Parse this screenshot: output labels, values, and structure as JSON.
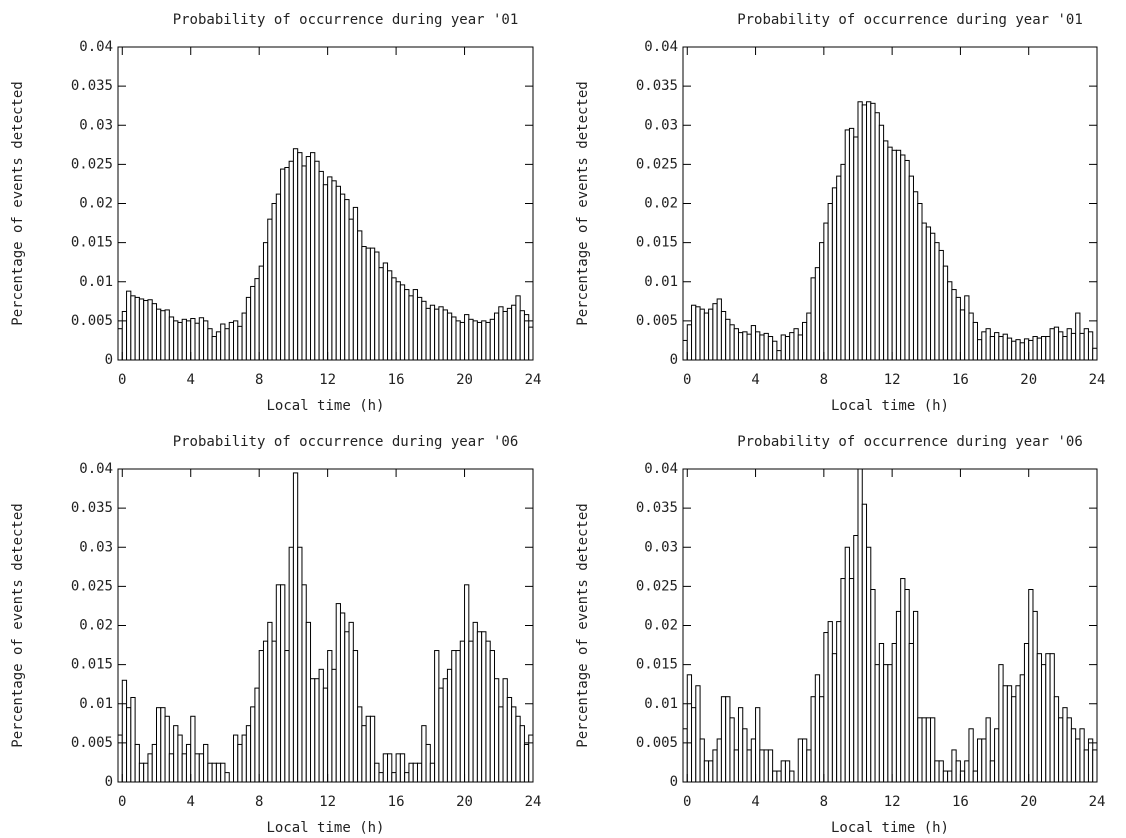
{
  "chart_data": [
    {
      "type": "histogram",
      "title": "Probability of occurrence during year '01",
      "xlabel": "Local time (h)",
      "ylabel": "Percentage of events detected",
      "color": "#ffffff",
      "bins": [
        -0.25,
        0,
        0.25,
        0.5,
        0.75,
        1,
        1.25,
        1.5,
        1.75,
        2,
        2.25,
        2.5,
        2.75,
        3,
        3.25,
        3.5,
        3.75,
        4,
        4.25,
        4.5,
        4.75,
        5,
        5.25,
        5.5,
        5.75,
        6,
        6.25,
        6.5,
        6.75,
        7,
        7.25,
        7.5,
        7.75,
        8,
        8.25,
        8.5,
        8.75,
        9,
        9.25,
        9.5,
        9.75,
        10,
        10.25,
        10.5,
        10.75,
        11,
        11.25,
        11.5,
        11.75,
        12,
        12.25,
        12.5,
        12.75,
        13,
        13.25,
        13.5,
        13.75,
        14,
        14.25,
        14.5,
        14.75,
        15,
        15.25,
        15.5,
        15.75,
        16,
        16.25,
        16.5,
        16.75,
        17,
        17.25,
        17.5,
        17.75,
        18,
        18.25,
        18.5,
        18.75,
        19,
        19.25,
        19.5,
        19.75,
        20,
        20.25,
        20.5,
        20.75,
        21,
        21.25,
        21.5,
        21.75,
        22,
        22.25,
        22.5,
        22.75,
        23,
        23.25,
        23.5,
        23.75,
        24
      ],
      "values": [
        0.004,
        0.0062,
        0.0088,
        0.0082,
        0.008,
        0.0078,
        0.0076,
        0.0077,
        0.0072,
        0.0065,
        0.0063,
        0.0064,
        0.0055,
        0.005,
        0.0048,
        0.0052,
        0.005,
        0.0053,
        0.0047,
        0.0054,
        0.005,
        0.004,
        0.003,
        0.0036,
        0.0046,
        0.004,
        0.0048,
        0.005,
        0.0043,
        0.006,
        0.008,
        0.0094,
        0.0104,
        0.012,
        0.015,
        0.018,
        0.02,
        0.0212,
        0.0244,
        0.0246,
        0.0254,
        0.027,
        0.0265,
        0.0248,
        0.026,
        0.0265,
        0.0254,
        0.0241,
        0.0224,
        0.0234,
        0.0229,
        0.0222,
        0.0212,
        0.0205,
        0.018,
        0.0195,
        0.0165,
        0.0145,
        0.0143,
        0.0143,
        0.0138,
        0.0118,
        0.0124,
        0.0114,
        0.0105,
        0.01,
        0.0096,
        0.009,
        0.0082,
        0.009,
        0.008,
        0.0075,
        0.0066,
        0.007,
        0.0065,
        0.0068,
        0.0064,
        0.006,
        0.0055,
        0.005,
        0.0048,
        0.0058,
        0.0052,
        0.005,
        0.0048,
        0.005,
        0.0048,
        0.0052,
        0.006,
        0.0068,
        0.0062,
        0.0066,
        0.007,
        0.0082,
        0.0063,
        0.0058,
        0.0042
      ],
      "xlim": [
        -0.25,
        24
      ],
      "ylim": [
        0,
        0.04
      ],
      "xticks": [
        0,
        4,
        8,
        12,
        16,
        20,
        24
      ],
      "yticks": [
        0,
        0.005,
        0.01,
        0.015,
        0.02,
        0.025,
        0.03,
        0.035,
        0.04
      ]
    },
    {
      "type": "histogram",
      "title": "Probability of occurrence during year '01",
      "xlabel": "Local time (h)",
      "ylabel": "Percentage of events detected",
      "color": "#ffffff",
      "bins": [
        -0.25,
        0,
        0.25,
        0.5,
        0.75,
        1,
        1.25,
        1.5,
        1.75,
        2,
        2.25,
        2.5,
        2.75,
        3,
        3.25,
        3.5,
        3.75,
        4,
        4.25,
        4.5,
        4.75,
        5,
        5.25,
        5.5,
        5.75,
        6,
        6.25,
        6.5,
        6.75,
        7,
        7.25,
        7.5,
        7.75,
        8,
        8.25,
        8.5,
        8.75,
        9,
        9.25,
        9.5,
        9.75,
        10,
        10.25,
        10.5,
        10.75,
        11,
        11.25,
        11.5,
        11.75,
        12,
        12.25,
        12.5,
        12.75,
        13,
        13.25,
        13.5,
        13.75,
        14,
        14.25,
        14.5,
        14.75,
        15,
        15.25,
        15.5,
        15.75,
        16,
        16.25,
        16.5,
        16.75,
        17,
        17.25,
        17.5,
        17.75,
        18,
        18.25,
        18.5,
        18.75,
        19,
        19.25,
        19.5,
        19.75,
        20,
        20.25,
        20.5,
        20.75,
        21,
        21.25,
        21.5,
        21.75,
        22,
        22.25,
        22.5,
        22.75,
        23,
        23.25,
        23.5,
        23.75,
        24
      ],
      "values": [
        0.0025,
        0.0045,
        0.007,
        0.0068,
        0.0065,
        0.006,
        0.0065,
        0.0072,
        0.0078,
        0.0062,
        0.0052,
        0.0045,
        0.004,
        0.0035,
        0.0036,
        0.0033,
        0.0044,
        0.0036,
        0.0032,
        0.0034,
        0.003,
        0.0024,
        0.0012,
        0.0032,
        0.003,
        0.0035,
        0.004,
        0.0032,
        0.0048,
        0.006,
        0.0105,
        0.0118,
        0.015,
        0.0175,
        0.02,
        0.022,
        0.0235,
        0.025,
        0.0294,
        0.0296,
        0.0285,
        0.033,
        0.0326,
        0.033,
        0.0328,
        0.0316,
        0.03,
        0.028,
        0.0272,
        0.0268,
        0.0268,
        0.0262,
        0.0255,
        0.0235,
        0.0215,
        0.02,
        0.0175,
        0.017,
        0.0162,
        0.015,
        0.014,
        0.012,
        0.01,
        0.009,
        0.008,
        0.0064,
        0.0082,
        0.006,
        0.0048,
        0.0026,
        0.0036,
        0.004,
        0.003,
        0.0035,
        0.003,
        0.0033,
        0.0028,
        0.0024,
        0.0026,
        0.0022,
        0.0027,
        0.0025,
        0.003,
        0.0028,
        0.003,
        0.003,
        0.004,
        0.0042,
        0.0036,
        0.003,
        0.004,
        0.0034,
        0.006,
        0.0034,
        0.004,
        0.0036,
        0.0015
      ],
      "xlim": [
        -0.25,
        24
      ],
      "ylim": [
        0,
        0.04
      ],
      "xticks": [
        0,
        4,
        8,
        12,
        16,
        20,
        24
      ],
      "yticks": [
        0,
        0.005,
        0.01,
        0.015,
        0.02,
        0.025,
        0.03,
        0.035,
        0.04
      ]
    },
    {
      "type": "histogram",
      "title": "Probability of occurrence during year '06",
      "xlabel": "Local time (h)",
      "ylabel": "Percentage of events detected",
      "color": "#ffffff",
      "bins": [
        -0.25,
        0,
        0.25,
        0.5,
        0.75,
        1,
        1.25,
        1.5,
        1.75,
        2,
        2.25,
        2.5,
        2.75,
        3,
        3.25,
        3.5,
        3.75,
        4,
        4.25,
        4.5,
        4.75,
        5,
        5.25,
        5.5,
        5.75,
        6,
        6.25,
        6.5,
        6.75,
        7,
        7.25,
        7.5,
        7.75,
        8,
        8.25,
        8.5,
        8.75,
        9,
        9.25,
        9.5,
        9.75,
        10,
        10.25,
        10.5,
        10.75,
        11,
        11.25,
        11.5,
        11.75,
        12,
        12.25,
        12.5,
        12.75,
        13,
        13.25,
        13.5,
        13.75,
        14,
        14.25,
        14.5,
        14.75,
        15,
        15.25,
        15.5,
        15.75,
        16,
        16.25,
        16.5,
        16.75,
        17,
        17.25,
        17.5,
        17.75,
        18,
        18.25,
        18.5,
        18.75,
        19,
        19.25,
        19.5,
        19.75,
        20,
        20.25,
        20.5,
        20.75,
        21,
        21.25,
        21.5,
        21.75,
        22,
        22.25,
        22.5,
        22.75,
        23,
        23.25,
        23.5,
        23.75,
        24
      ],
      "values": [
        0.006,
        0.013,
        0.0095,
        0.0108,
        0.0048,
        0.0024,
        0.0024,
        0.0036,
        0.0048,
        0.0095,
        0.0095,
        0.0084,
        0.0036,
        0.0072,
        0.006,
        0.0036,
        0.0048,
        0.0084,
        0.0036,
        0.0036,
        0.0048,
        0.0024,
        0.0024,
        0.0024,
        0.0024,
        0.0012,
        0,
        0.006,
        0.0048,
        0.006,
        0.0072,
        0.0096,
        0.012,
        0.0168,
        0.018,
        0.0204,
        0.018,
        0.0252,
        0.0252,
        0.0168,
        0.03,
        0.0395,
        0.03,
        0.0252,
        0.0204,
        0.0132,
        0.0132,
        0.0144,
        0.012,
        0.0168,
        0.0144,
        0.0228,
        0.0216,
        0.0192,
        0.0204,
        0.0168,
        0.0096,
        0.0072,
        0.0084,
        0.0084,
        0.0024,
        0.0012,
        0.0036,
        0.0036,
        0.0012,
        0.0036,
        0.0036,
        0.0012,
        0.0024,
        0.0024,
        0.0024,
        0.0072,
        0.0048,
        0.0024,
        0.0168,
        0.012,
        0.0132,
        0.0144,
        0.0168,
        0.0168,
        0.018,
        0.0252,
        0.018,
        0.0204,
        0.0192,
        0.0192,
        0.018,
        0.0168,
        0.0132,
        0.0096,
        0.0132,
        0.0108,
        0.0096,
        0.0084,
        0.0072,
        0.0048,
        0.006
      ],
      "xlim": [
        -0.25,
        24
      ],
      "ylim": [
        0,
        0.04
      ],
      "xticks": [
        0,
        4,
        8,
        12,
        16,
        20,
        24
      ],
      "yticks": [
        0,
        0.005,
        0.01,
        0.015,
        0.02,
        0.025,
        0.03,
        0.035,
        0.04
      ]
    },
    {
      "type": "histogram",
      "title": "Probability of occurrence during year '06",
      "xlabel": "Local time (h)",
      "ylabel": "Percentage of events detected",
      "color": "#ffffff",
      "bins": [
        -0.25,
        0,
        0.25,
        0.5,
        0.75,
        1,
        1.25,
        1.5,
        1.75,
        2,
        2.25,
        2.5,
        2.75,
        3,
        3.25,
        3.5,
        3.75,
        4,
        4.25,
        4.5,
        4.75,
        5,
        5.25,
        5.5,
        5.75,
        6,
        6.25,
        6.5,
        6.75,
        7,
        7.25,
        7.5,
        7.75,
        8,
        8.25,
        8.5,
        8.75,
        9,
        9.25,
        9.5,
        9.75,
        10,
        10.25,
        10.5,
        10.75,
        11,
        11.25,
        11.5,
        11.75,
        12,
        12.25,
        12.5,
        12.75,
        13,
        13.25,
        13.5,
        13.75,
        14,
        14.25,
        14.5,
        14.75,
        15,
        15.25,
        15.5,
        15.75,
        16,
        16.25,
        16.5,
        16.75,
        17,
        17.25,
        17.5,
        17.75,
        18,
        18.25,
        18.5,
        18.75,
        19,
        19.25,
        19.5,
        19.75,
        20,
        20.25,
        20.5,
        20.75,
        21,
        21.25,
        21.5,
        21.75,
        22,
        22.25,
        22.5,
        22.75,
        23,
        23.25,
        23.5,
        23.75,
        24
      ],
      "values": [
        0.0068,
        0.0137,
        0.0095,
        0.0123,
        0.0055,
        0.0027,
        0.0027,
        0.0041,
        0.0055,
        0.0109,
        0.0109,
        0.0082,
        0.0041,
        0.0095,
        0.0068,
        0.0041,
        0.0055,
        0.0095,
        0.0041,
        0.0041,
        0.0041,
        0.0014,
        0.0014,
        0.0027,
        0.0027,
        0.0014,
        0,
        0.0055,
        0.0055,
        0.0041,
        0.0109,
        0.0137,
        0.0109,
        0.0191,
        0.0205,
        0.0164,
        0.0205,
        0.026,
        0.03,
        0.026,
        0.0315,
        0.04,
        0.0355,
        0.03,
        0.0246,
        0.015,
        0.0177,
        0.015,
        0.015,
        0.0177,
        0.0218,
        0.026,
        0.0246,
        0.0177,
        0.0218,
        0.0082,
        0.0082,
        0.0082,
        0.0082,
        0.0027,
        0.0027,
        0.0014,
        0.0014,
        0.0041,
        0.0027,
        0.0014,
        0.0027,
        0.0068,
        0.0014,
        0.0055,
        0.0055,
        0.0082,
        0.0027,
        0.0068,
        0.015,
        0.0123,
        0.0123,
        0.0109,
        0.0123,
        0.0137,
        0.0177,
        0.0246,
        0.0218,
        0.0164,
        0.015,
        0.0164,
        0.0164,
        0.0109,
        0.0082,
        0.0095,
        0.0082,
        0.0068,
        0.0055,
        0.0068,
        0.0041,
        0.0055,
        0.0041
      ],
      "xlim": [
        -0.25,
        24
      ],
      "ylim": [
        0,
        0.04
      ],
      "xticks": [
        0,
        4,
        8,
        12,
        16,
        20,
        24
      ],
      "yticks": [
        0,
        0.005,
        0.01,
        0.015,
        0.02,
        0.025,
        0.03,
        0.035,
        0.04
      ]
    }
  ]
}
